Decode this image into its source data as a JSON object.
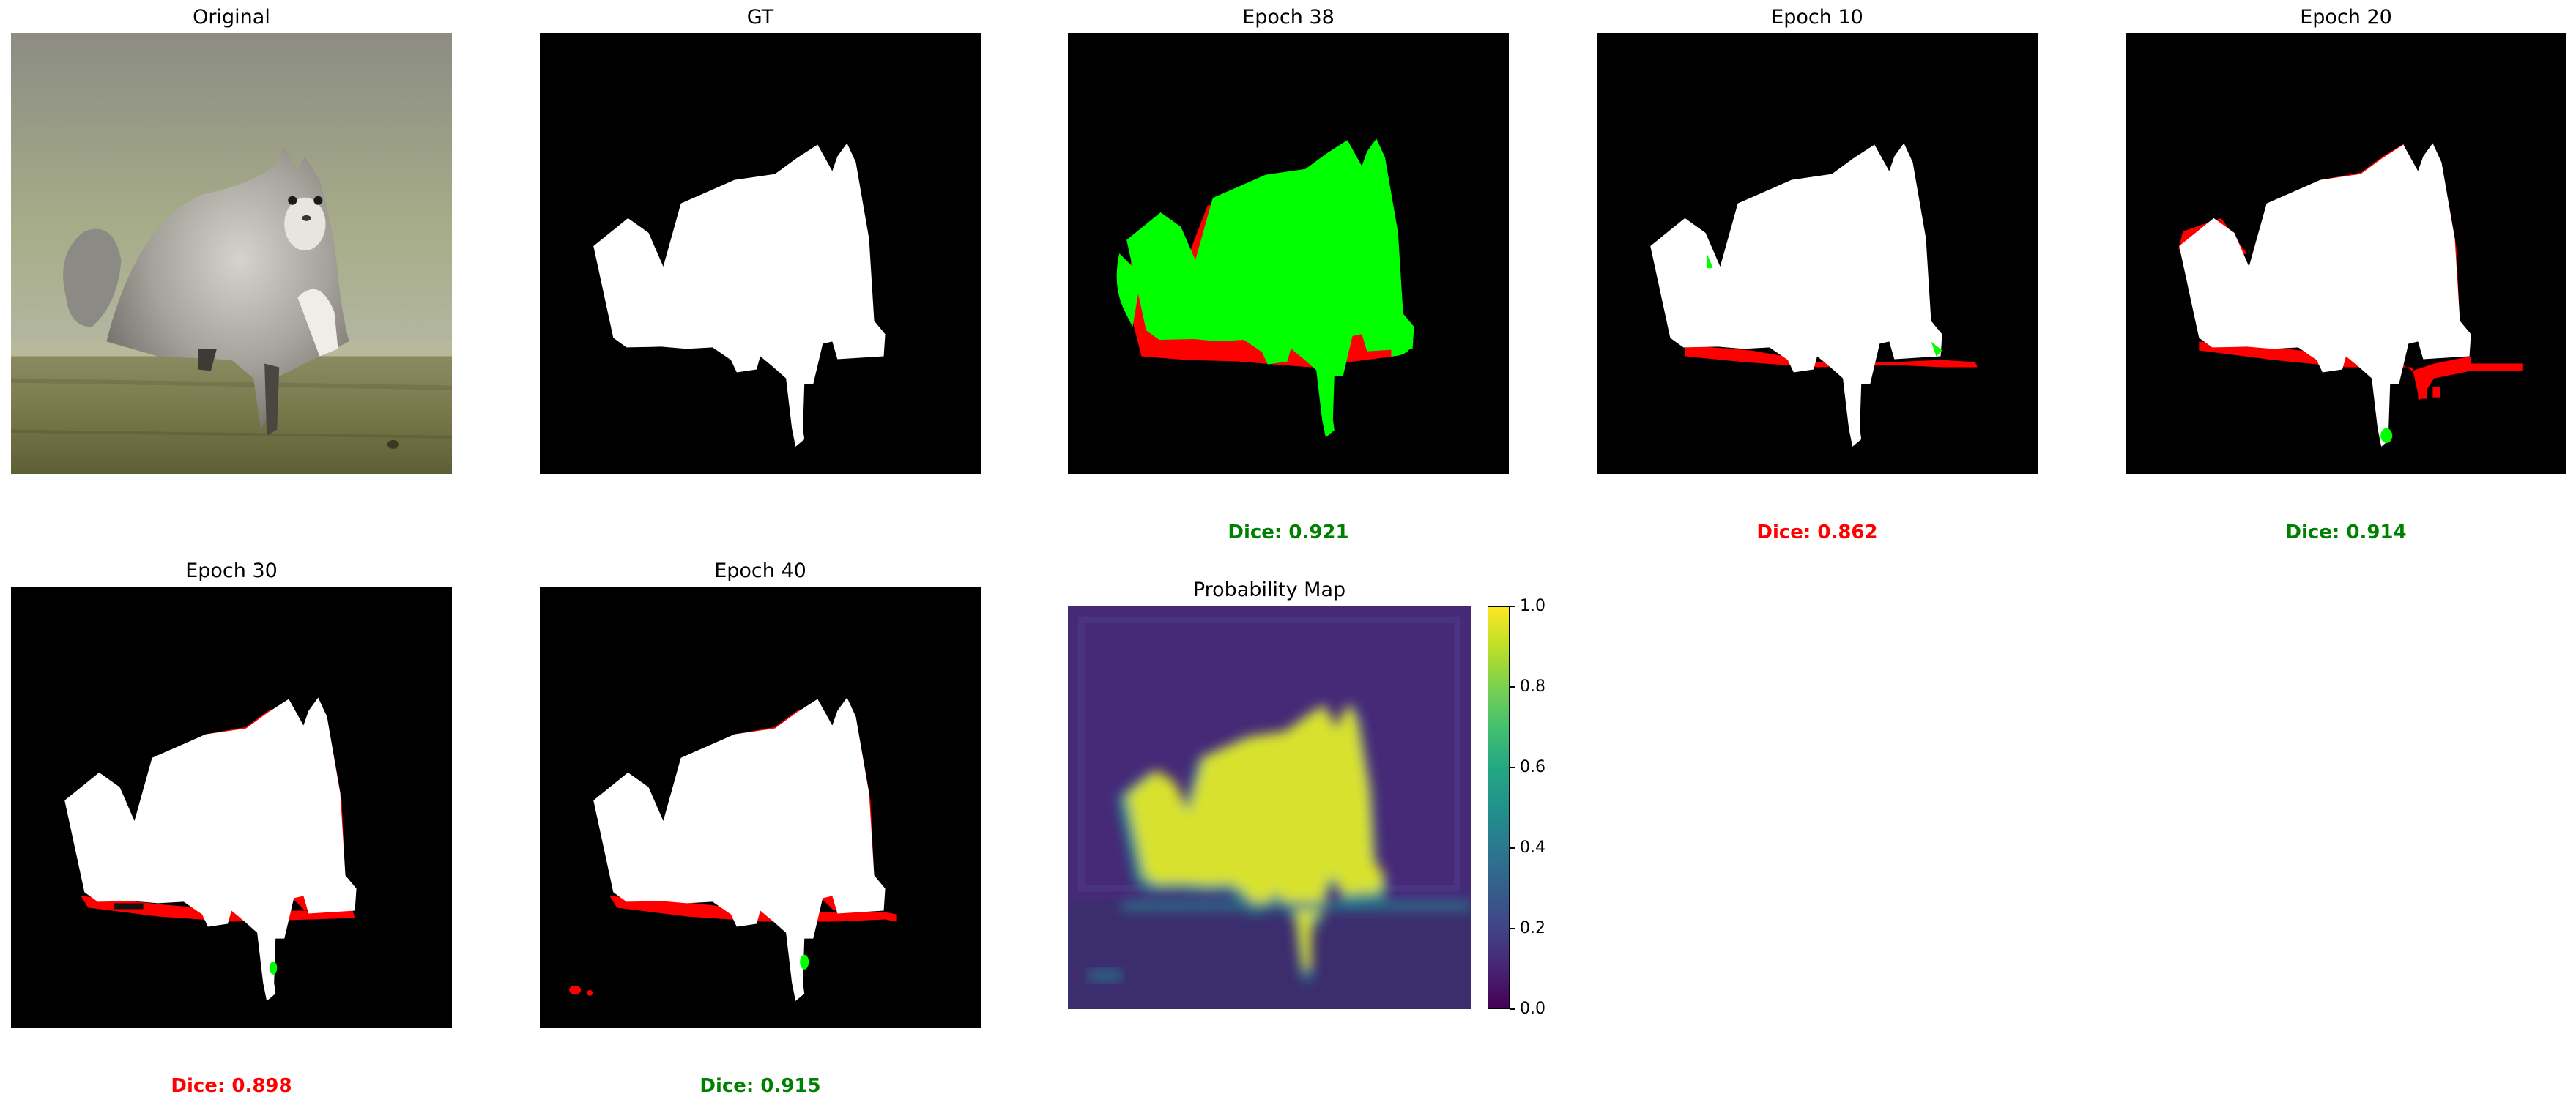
{
  "panels": [
    {
      "title": "Original",
      "kind": "photo"
    },
    {
      "title": "GT",
      "kind": "mask"
    },
    {
      "title": "Epoch 38",
      "kind": "overlay-best",
      "dice": "Dice: 0.921",
      "dice_color": "#008000"
    },
    {
      "title": "Epoch 10",
      "kind": "overlay",
      "dice": "Dice: 0.862",
      "dice_color": "#ff0000"
    },
    {
      "title": "Epoch 20",
      "kind": "overlay",
      "dice": "Dice: 0.914",
      "dice_color": "#008000"
    },
    {
      "title": "Epoch 30",
      "kind": "overlay",
      "dice": "Dice: 0.898",
      "dice_color": "#ff0000"
    },
    {
      "title": "Epoch 40",
      "kind": "overlay",
      "dice": "Dice: 0.915",
      "dice_color": "#008000"
    },
    {
      "title": "Probability Map",
      "kind": "probability"
    }
  ],
  "colorbar": {
    "ticks": [
      "0.0",
      "0.2",
      "0.4",
      "0.6",
      "0.8",
      "1.0"
    ],
    "colormap": "viridis"
  },
  "colors": {
    "mask": "#ffffff",
    "background": "#000000",
    "false_negative": "#ff0000",
    "false_positive": "#00ff00",
    "dice_good": "#008000",
    "dice_bad": "#ff0000"
  }
}
